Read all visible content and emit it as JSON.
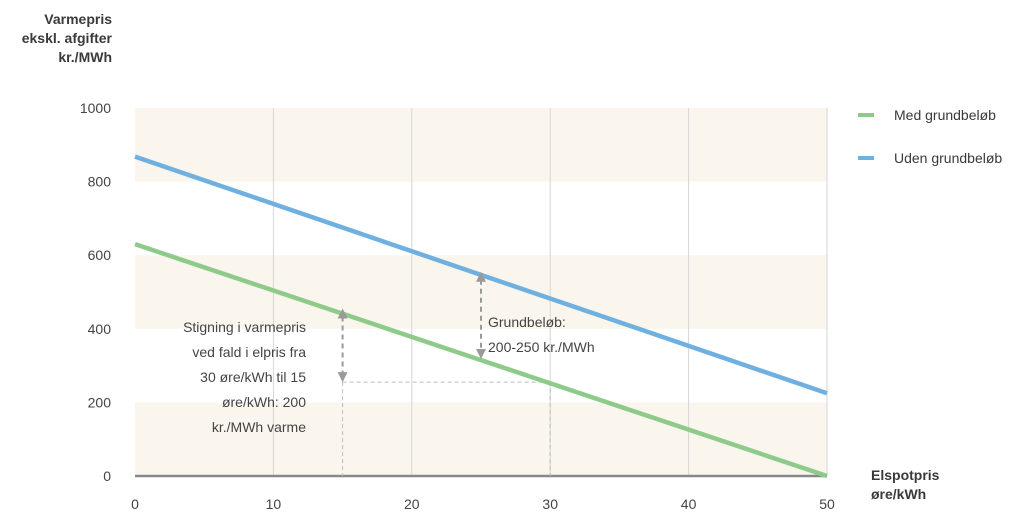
{
  "chart_data": {
    "type": "line",
    "y_axis_label": [
      "Varmepris",
      "ekskl. afgifter",
      "kr./MWh"
    ],
    "x_axis_label": [
      "Elspotpris",
      "øre/kWh"
    ],
    "x_ticks": [
      "0",
      "10",
      "20",
      "30",
      "40",
      "50"
    ],
    "y_ticks": [
      "0",
      "200",
      "400",
      "600",
      "800",
      "1000"
    ],
    "xlim": [
      0,
      50
    ],
    "ylim": [
      0,
      1000
    ],
    "grid": "vertical lines, horizontal bands",
    "legend_position": "right",
    "series": [
      {
        "name": "Med grundbeløb",
        "color": "#8ecb8b",
        "x": [
          0,
          50
        ],
        "y": [
          630,
          0
        ]
      },
      {
        "name": "Uden grundbeløb",
        "color": "#6fb0e0",
        "x": [
          0,
          50
        ],
        "y": [
          868,
          225
        ]
      }
    ],
    "annotations": {
      "left_text": [
        "Stigning i varmepris",
        "ved fald i elpris fra",
        "30 øre/kWh til 15",
        "øre/kWh: 200",
        "kr./MWh varme"
      ],
      "right_text": [
        "Grundbeløb:",
        "200-250 kr./MWh"
      ],
      "arrow_left": {
        "x": 15,
        "y_from": 255,
        "y_to": 455
      },
      "arrow_right": {
        "x": 25,
        "y_from": 318,
        "y_to": 555
      },
      "reference_point": {
        "x": 30,
        "y": 255
      }
    }
  },
  "colors": {
    "band": "#faf6ee",
    "grid": "#d6d6d6",
    "axis": "#888888",
    "arrow": "#9a9a9a"
  }
}
